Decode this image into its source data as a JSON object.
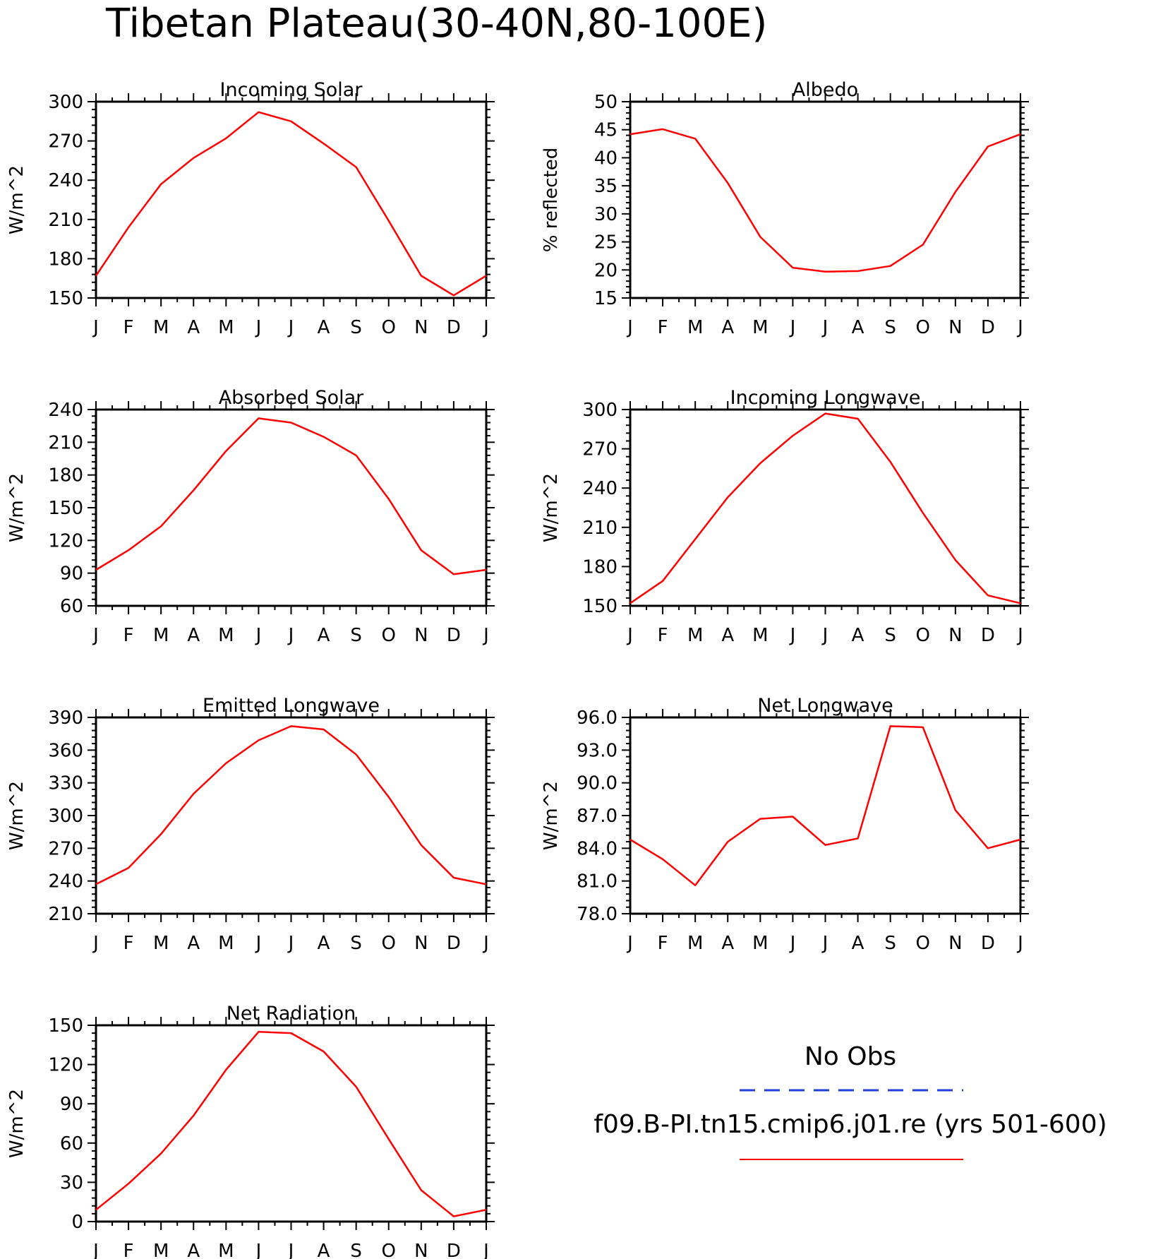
{
  "figure": {
    "title": "Tibetan Plateau(30-40N,80-100E)"
  },
  "legend": {
    "obs_label": "No Obs",
    "obs_color": "#1f3fd6",
    "model_label": "f09.B-PI.tn15.cmip6.j01.re (yrs 501-600)",
    "model_color": "#ff0000"
  },
  "chart_data": [
    {
      "type": "line",
      "title": "Incoming Solar",
      "ylabel": "W/m^2",
      "categories": [
        "J",
        "F",
        "M",
        "A",
        "M",
        "J",
        "J",
        "A",
        "S",
        "O",
        "N",
        "D",
        "J"
      ],
      "ylim": [
        150,
        300
      ],
      "yticks": [
        "150",
        "180",
        "210",
        "240",
        "270",
        "300"
      ],
      "series": [
        {
          "values": [
            167,
            204,
            237,
            257,
            272,
            292,
            285,
            268,
            250,
            209,
            167,
            152,
            167
          ]
        }
      ]
    },
    {
      "type": "line",
      "title": "Albedo",
      "ylabel": "% reflected",
      "categories": [
        "J",
        "F",
        "M",
        "A",
        "M",
        "J",
        "J",
        "A",
        "S",
        "O",
        "N",
        "D",
        "J"
      ],
      "ylim": [
        15,
        50
      ],
      "yticks": [
        "15",
        "20",
        "25",
        "30",
        "35",
        "40",
        "45",
        "50"
      ],
      "series": [
        {
          "values": [
            44.2,
            45.1,
            43.4,
            35.5,
            25.9,
            20.4,
            19.7,
            19.8,
            20.7,
            24.5,
            33.9,
            42.0,
            44.2
          ]
        }
      ]
    },
    {
      "type": "line",
      "title": "Absorbed Solar",
      "ylabel": "W/m^2",
      "categories": [
        "J",
        "F",
        "M",
        "A",
        "M",
        "J",
        "J",
        "A",
        "S",
        "O",
        "N",
        "D",
        "J"
      ],
      "ylim": [
        60,
        240
      ],
      "yticks": [
        "60",
        "90",
        "120",
        "150",
        "180",
        "210",
        "240"
      ],
      "series": [
        {
          "values": [
            93,
            111,
            133,
            166,
            202,
            232,
            228,
            215,
            198,
            158,
            111,
            89,
            93
          ]
        }
      ]
    },
    {
      "type": "line",
      "title": "Incoming Longwave",
      "ylabel": "W/m^2",
      "categories": [
        "J",
        "F",
        "M",
        "A",
        "M",
        "J",
        "J",
        "A",
        "S",
        "O",
        "N",
        "D",
        "J"
      ],
      "ylim": [
        150,
        300
      ],
      "yticks": [
        "150",
        "180",
        "210",
        "240",
        "270",
        "300"
      ],
      "series": [
        {
          "values": [
            152,
            169,
            201,
            233,
            259,
            280,
            297,
            293,
            260,
            221,
            185,
            158,
            152
          ]
        }
      ]
    },
    {
      "type": "line",
      "title": "Emitted Longwave",
      "ylabel": "W/m^2",
      "categories": [
        "J",
        "F",
        "M",
        "A",
        "M",
        "J",
        "J",
        "A",
        "S",
        "O",
        "N",
        "D",
        "J"
      ],
      "ylim": [
        210,
        390
      ],
      "yticks": [
        "210",
        "240",
        "270",
        "300",
        "330",
        "360",
        "390"
      ],
      "series": [
        {
          "values": [
            237,
            252,
            283,
            320,
            348,
            369,
            382,
            379,
            356,
            317,
            273,
            243,
            237
          ]
        }
      ]
    },
    {
      "type": "line",
      "title": "Net Longwave",
      "ylabel": "W/m^2",
      "categories": [
        "J",
        "F",
        "M",
        "A",
        "M",
        "J",
        "J",
        "A",
        "S",
        "O",
        "N",
        "D",
        "J"
      ],
      "ylim": [
        78,
        96
      ],
      "yticks": [
        "78.0",
        "81.0",
        "84.0",
        "87.0",
        "90.0",
        "93.0",
        "96.0"
      ],
      "series": [
        {
          "values": [
            84.8,
            83.0,
            80.6,
            84.6,
            86.7,
            86.9,
            84.3,
            84.9,
            95.2,
            95.1,
            87.5,
            84.0,
            84.8
          ]
        }
      ]
    },
    {
      "type": "line",
      "title": "Net Radiation",
      "ylabel": "W/m^2",
      "categories": [
        "J",
        "F",
        "M",
        "A",
        "M",
        "J",
        "J",
        "A",
        "S",
        "O",
        "N",
        "D",
        "J"
      ],
      "ylim": [
        0,
        150
      ],
      "yticks": [
        "0",
        "30",
        "60",
        "90",
        "120",
        "150"
      ],
      "series": [
        {
          "values": [
            9,
            29,
            52,
            81,
            116,
            145,
            144,
            130,
            103,
            63,
            24,
            4,
            9
          ]
        }
      ]
    }
  ]
}
